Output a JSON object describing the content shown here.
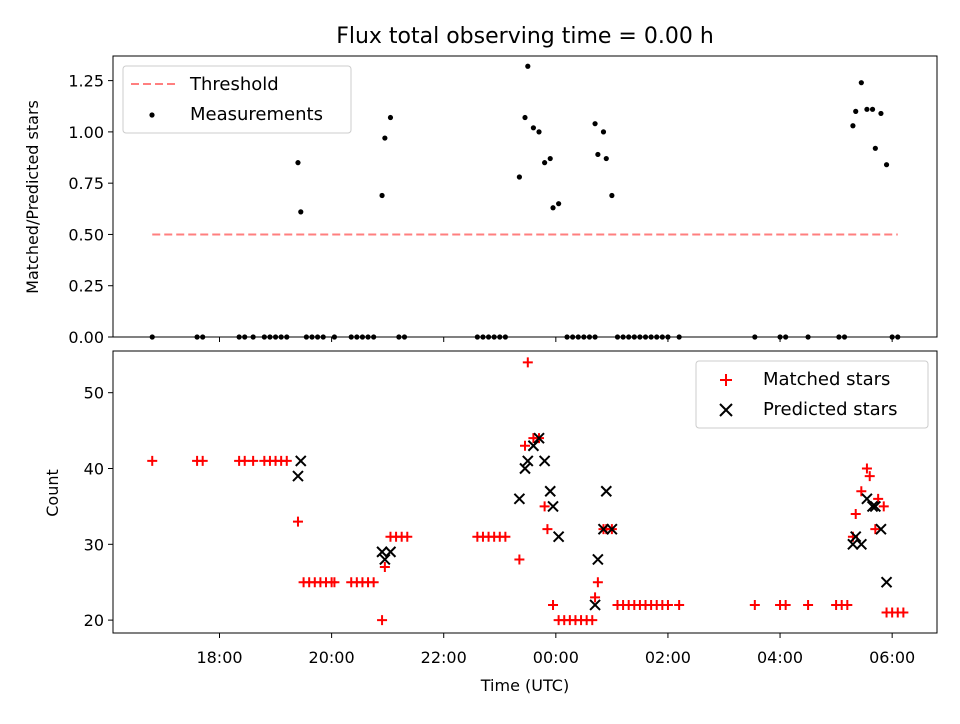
{
  "chart_data": [
    {
      "type": "scatter",
      "title": "Flux total observing time = 0.00 h",
      "xlabel": "",
      "ylabel": "Matched/Predicted stars",
      "ylim": [
        0,
        1.37
      ],
      "yticks": [
        0.0,
        0.25,
        0.5,
        0.75,
        1.0,
        1.25
      ],
      "yticklabels": [
        "0.00",
        "0.25",
        "0.50",
        "0.75",
        "1.00",
        "1.25"
      ],
      "legend_position": "top-left",
      "series": [
        {
          "name": "Threshold",
          "kind": "line",
          "style": "dashed",
          "color": "#ff7f7f",
          "x": [
            16.8,
            30.1
          ],
          "y": [
            0.5,
            0.5
          ]
        },
        {
          "name": "Measurements",
          "kind": "scatter",
          "marker": "dot",
          "color": "#000000",
          "points": [
            [
              16.8,
              0
            ],
            [
              17.6,
              0
            ],
            [
              17.7,
              0
            ],
            [
              18.35,
              0
            ],
            [
              18.45,
              0
            ],
            [
              18.6,
              0
            ],
            [
              18.8,
              0
            ],
            [
              18.9,
              0
            ],
            [
              19.0,
              0
            ],
            [
              19.1,
              0
            ],
            [
              19.2,
              0
            ],
            [
              19.4,
              0.85
            ],
            [
              19.45,
              0.61
            ],
            [
              19.55,
              0
            ],
            [
              19.65,
              0
            ],
            [
              19.75,
              0
            ],
            [
              19.85,
              0
            ],
            [
              20.05,
              0
            ],
            [
              20.35,
              0
            ],
            [
              20.45,
              0
            ],
            [
              20.55,
              0
            ],
            [
              20.65,
              0
            ],
            [
              20.75,
              0
            ],
            [
              20.9,
              0.69
            ],
            [
              20.95,
              0.97
            ],
            [
              21.05,
              1.07
            ],
            [
              21.2,
              0
            ],
            [
              21.3,
              0
            ],
            [
              22.6,
              0
            ],
            [
              22.7,
              0
            ],
            [
              22.8,
              0
            ],
            [
              22.9,
              0
            ],
            [
              23.0,
              0
            ],
            [
              23.1,
              0
            ],
            [
              23.35,
              0.78
            ],
            [
              23.45,
              1.07
            ],
            [
              23.5,
              1.32
            ],
            [
              23.6,
              1.02
            ],
            [
              23.7,
              1.0
            ],
            [
              23.8,
              0.85
            ],
            [
              23.9,
              0.87
            ],
            [
              23.95,
              0.63
            ],
            [
              24.05,
              0.65
            ],
            [
              24.2,
              0
            ],
            [
              24.3,
              0
            ],
            [
              24.4,
              0
            ],
            [
              24.5,
              0
            ],
            [
              24.6,
              0
            ],
            [
              24.7,
              0
            ],
            [
              24.7,
              1.04
            ],
            [
              24.75,
              0.89
            ],
            [
              24.85,
              1.0
            ],
            [
              24.9,
              0.87
            ],
            [
              25.0,
              0.69
            ],
            [
              25.1,
              0
            ],
            [
              25.2,
              0
            ],
            [
              25.3,
              0
            ],
            [
              25.4,
              0
            ],
            [
              25.5,
              0
            ],
            [
              25.6,
              0
            ],
            [
              25.7,
              0
            ],
            [
              25.8,
              0
            ],
            [
              25.9,
              0
            ],
            [
              26.0,
              0
            ],
            [
              26.2,
              0
            ],
            [
              27.55,
              0
            ],
            [
              28.0,
              0
            ],
            [
              28.1,
              0
            ],
            [
              28.5,
              0
            ],
            [
              29.05,
              0
            ],
            [
              29.15,
              0
            ],
            [
              29.3,
              1.03
            ],
            [
              29.35,
              1.1
            ],
            [
              29.45,
              1.24
            ],
            [
              29.55,
              1.11
            ],
            [
              29.65,
              1.11
            ],
            [
              29.7,
              0.92
            ],
            [
              29.8,
              1.09
            ],
            [
              29.9,
              0.84
            ],
            [
              30.0,
              0
            ],
            [
              30.1,
              0
            ]
          ]
        }
      ]
    },
    {
      "type": "scatter",
      "title": "",
      "xlabel": "Time (UTC)",
      "ylabel": "Count",
      "ylim": [
        18.3,
        55.5
      ],
      "xlim": [
        16.1,
        30.8
      ],
      "yticks": [
        20,
        30,
        40,
        50
      ],
      "yticklabels": [
        "20",
        "30",
        "40",
        "50"
      ],
      "xticks": [
        18,
        20,
        22,
        24,
        26,
        28,
        30
      ],
      "xticklabels": [
        "18:00",
        "20:00",
        "22:00",
        "00:00",
        "02:00",
        "04:00",
        "06:00"
      ],
      "legend_position": "top-right",
      "series": [
        {
          "name": "Matched stars",
          "kind": "scatter",
          "marker": "plus",
          "color": "#ff0000",
          "points": [
            [
              16.8,
              41
            ],
            [
              17.6,
              41
            ],
            [
              17.7,
              41
            ],
            [
              18.35,
              41
            ],
            [
              18.45,
              41
            ],
            [
              18.6,
              41
            ],
            [
              18.8,
              41
            ],
            [
              18.9,
              41
            ],
            [
              19.0,
              41
            ],
            [
              19.1,
              41
            ],
            [
              19.2,
              41
            ],
            [
              19.4,
              33
            ],
            [
              19.5,
              25
            ],
            [
              19.6,
              25
            ],
            [
              19.7,
              25
            ],
            [
              19.8,
              25
            ],
            [
              19.9,
              25
            ],
            [
              20.0,
              25
            ],
            [
              20.05,
              25
            ],
            [
              20.35,
              25
            ],
            [
              20.45,
              25
            ],
            [
              20.55,
              25
            ],
            [
              20.65,
              25
            ],
            [
              20.75,
              25
            ],
            [
              20.9,
              20
            ],
            [
              20.95,
              27
            ],
            [
              21.05,
              31
            ],
            [
              21.15,
              31
            ],
            [
              21.25,
              31
            ],
            [
              21.35,
              31
            ],
            [
              22.6,
              31
            ],
            [
              22.7,
              31
            ],
            [
              22.8,
              31
            ],
            [
              22.9,
              31
            ],
            [
              23.0,
              31
            ],
            [
              23.1,
              31
            ],
            [
              23.35,
              28
            ],
            [
              23.45,
              43
            ],
            [
              23.5,
              54
            ],
            [
              23.6,
              44
            ],
            [
              23.7,
              44
            ],
            [
              23.8,
              35
            ],
            [
              23.85,
              32
            ],
            [
              23.95,
              22
            ],
            [
              24.05,
              20
            ],
            [
              24.15,
              20
            ],
            [
              24.25,
              20
            ],
            [
              24.35,
              20
            ],
            [
              24.45,
              20
            ],
            [
              24.55,
              20
            ],
            [
              24.65,
              20
            ],
            [
              24.7,
              23
            ],
            [
              24.75,
              25
            ],
            [
              24.85,
              32
            ],
            [
              24.9,
              32
            ],
            [
              25.0,
              32
            ],
            [
              25.1,
              22
            ],
            [
              25.2,
              22
            ],
            [
              25.3,
              22
            ],
            [
              25.4,
              22
            ],
            [
              25.5,
              22
            ],
            [
              25.6,
              22
            ],
            [
              25.7,
              22
            ],
            [
              25.8,
              22
            ],
            [
              25.9,
              22
            ],
            [
              26.0,
              22
            ],
            [
              26.2,
              22
            ],
            [
              27.55,
              22
            ],
            [
              28.0,
              22
            ],
            [
              28.1,
              22
            ],
            [
              28.5,
              22
            ],
            [
              29.0,
              22
            ],
            [
              29.1,
              22
            ],
            [
              29.2,
              22
            ],
            [
              29.3,
              31
            ],
            [
              29.35,
              34
            ],
            [
              29.45,
              37
            ],
            [
              29.55,
              40
            ],
            [
              29.6,
              39
            ],
            [
              29.7,
              32
            ],
            [
              29.75,
              36
            ],
            [
              29.85,
              35
            ],
            [
              29.9,
              21
            ],
            [
              30.0,
              21
            ],
            [
              30.1,
              21
            ],
            [
              30.2,
              21
            ]
          ]
        },
        {
          "name": "Predicted stars",
          "kind": "scatter",
          "marker": "x",
          "color": "#000000",
          "points": [
            [
              19.4,
              39
            ],
            [
              19.45,
              41
            ],
            [
              20.9,
              29
            ],
            [
              20.95,
              28
            ],
            [
              21.05,
              29
            ],
            [
              23.35,
              36
            ],
            [
              23.45,
              40
            ],
            [
              23.5,
              41
            ],
            [
              23.6,
              43
            ],
            [
              23.7,
              44
            ],
            [
              23.8,
              41
            ],
            [
              23.9,
              37
            ],
            [
              23.95,
              35
            ],
            [
              24.05,
              31
            ],
            [
              24.7,
              22
            ],
            [
              24.75,
              28
            ],
            [
              24.85,
              32
            ],
            [
              24.9,
              37
            ],
            [
              25.0,
              32
            ],
            [
              29.3,
              30
            ],
            [
              29.35,
              31
            ],
            [
              29.45,
              30
            ],
            [
              29.55,
              36
            ],
            [
              29.65,
              35
            ],
            [
              29.7,
              35
            ],
            [
              29.8,
              32
            ],
            [
              29.9,
              25
            ]
          ]
        }
      ]
    }
  ]
}
